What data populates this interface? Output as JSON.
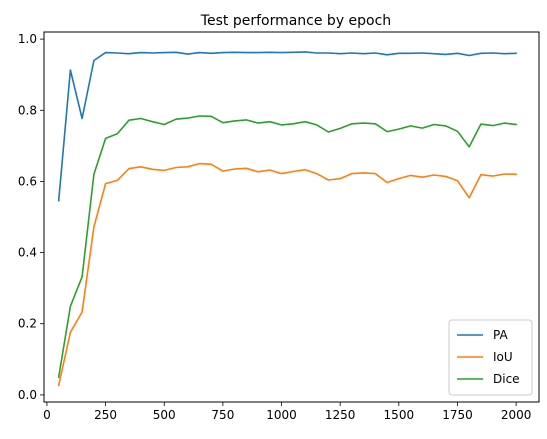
{
  "chart_data": {
    "type": "line",
    "title": "Test performance by epoch",
    "xlabel": "",
    "ylabel": "",
    "xlim": [
      -12.5,
      2097.5
    ],
    "ylim": [
      -0.02,
      1.02
    ],
    "xticks": [
      0,
      250,
      500,
      750,
      1000,
      1250,
      1500,
      1750,
      2000
    ],
    "yticks": [
      0.0,
      0.2,
      0.4,
      0.6,
      0.8,
      1.0
    ],
    "xtick_labels": [
      "0",
      "250",
      "500",
      "750",
      "1000",
      "1250",
      "1500",
      "1750",
      "2000"
    ],
    "ytick_labels": [
      "0.0",
      "0.2",
      "0.4",
      "0.6",
      "0.8",
      "1.0"
    ],
    "grid": false,
    "legend_position": "bottom-right",
    "x": [
      50,
      100,
      150,
      200,
      250,
      300,
      350,
      400,
      450,
      500,
      550,
      600,
      650,
      700,
      750,
      800,
      850,
      900,
      950,
      1000,
      1050,
      1100,
      1150,
      1200,
      1250,
      1300,
      1350,
      1400,
      1450,
      1500,
      1550,
      1600,
      1650,
      1700,
      1750,
      1800,
      1850,
      1900,
      1950,
      2000
    ],
    "series": [
      {
        "name": "PA",
        "color": "#1f77b4",
        "values": [
          0.546,
          0.913,
          0.777,
          0.94,
          0.962,
          0.961,
          0.959,
          0.962,
          0.961,
          0.962,
          0.963,
          0.958,
          0.962,
          0.96,
          0.962,
          0.963,
          0.962,
          0.962,
          0.963,
          0.962,
          0.963,
          0.964,
          0.961,
          0.961,
          0.959,
          0.961,
          0.959,
          0.961,
          0.956,
          0.96,
          0.96,
          0.961,
          0.959,
          0.957,
          0.96,
          0.954,
          0.96,
          0.961,
          0.959,
          0.96
        ]
      },
      {
        "name": "IoU",
        "color": "#ff7f0e",
        "values": [
          0.027,
          0.176,
          0.233,
          0.472,
          0.594,
          0.603,
          0.636,
          0.641,
          0.634,
          0.631,
          0.639,
          0.641,
          0.65,
          0.648,
          0.629,
          0.635,
          0.637,
          0.627,
          0.632,
          0.622,
          0.628,
          0.633,
          0.622,
          0.604,
          0.608,
          0.622,
          0.624,
          0.622,
          0.597,
          0.608,
          0.617,
          0.612,
          0.618,
          0.614,
          0.602,
          0.554,
          0.619,
          0.615,
          0.621,
          0.62
        ]
      },
      {
        "name": "Dice",
        "color": "#2ca02c",
        "values": [
          0.05,
          0.249,
          0.332,
          0.62,
          0.721,
          0.734,
          0.772,
          0.777,
          0.768,
          0.76,
          0.775,
          0.778,
          0.784,
          0.783,
          0.765,
          0.77,
          0.773,
          0.764,
          0.768,
          0.759,
          0.762,
          0.768,
          0.759,
          0.739,
          0.749,
          0.762,
          0.764,
          0.762,
          0.74,
          0.747,
          0.756,
          0.75,
          0.76,
          0.756,
          0.741,
          0.697,
          0.761,
          0.757,
          0.764,
          0.76
        ]
      }
    ]
  }
}
